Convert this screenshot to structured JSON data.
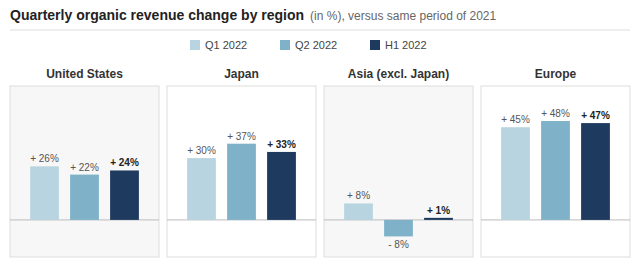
{
  "chart_data": {
    "type": "bar",
    "title": "Quarterly organic revenue change by region",
    "subtitle": "(in %), versus same period of 2021",
    "categories": [
      "United States",
      "Japan",
      "Asia (excl. Japan)",
      "Europe"
    ],
    "series": [
      {
        "name": "Q1 2022",
        "color": "#b8d4e0",
        "values": [
          26,
          30,
          8,
          45
        ],
        "value_labels": [
          "+ 26%",
          "+ 30%",
          "+ 8%",
          "+ 45%"
        ]
      },
      {
        "name": "Q2 2022",
        "color": "#7fb2c8",
        "values": [
          22,
          37,
          -8,
          48
        ],
        "value_labels": [
          "+ 22%",
          "+ 37%",
          "- 8%",
          "+ 48%"
        ]
      },
      {
        "name": "H1 2022",
        "color": "#1e3a5f",
        "values": [
          24,
          33,
          1,
          47
        ],
        "value_labels": [
          "+ 24%",
          "+ 33%",
          "+ 1%",
          "+ 47%"
        ]
      }
    ],
    "ylim": [
      -18,
      65
    ],
    "data_labels": true,
    "tick_labels": "x",
    "grid": false
  }
}
